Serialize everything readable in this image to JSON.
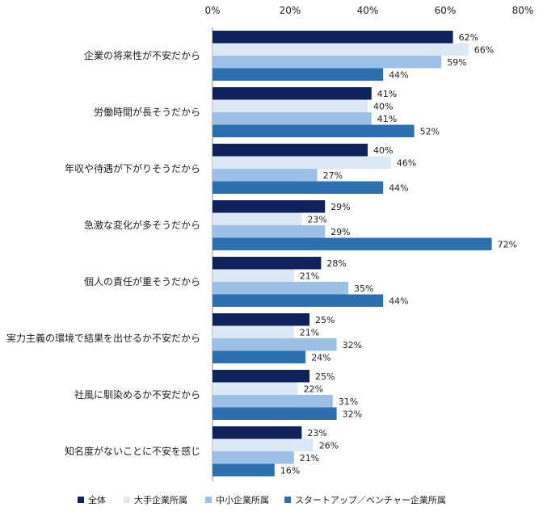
{
  "chart_data": {
    "type": "bar",
    "orientation": "horizontal",
    "xlim": [
      0,
      80
    ],
    "ticks": [
      0,
      20,
      40,
      60,
      80
    ],
    "tick_labels": [
      "0%",
      "20%",
      "40%",
      "60%",
      "80%"
    ],
    "value_suffix": "%",
    "legend_position": "bottom",
    "categories": [
      "企業の将来性が不安だから",
      "労働時間が長そうだから",
      "年収や待遇が下がりそうだから",
      "急激な変化が多そうだから",
      "個人の責任が重そうだから",
      "実力主義の環境で結果を出せるか不安だから",
      "社風に馴染めるか不安だから",
      "知名度がないことに不安を感じ"
    ],
    "series": [
      {
        "name": "全体",
        "color": "#0f2259",
        "values": [
          62,
          41,
          40,
          29,
          28,
          25,
          25,
          23
        ]
      },
      {
        "name": "大手企業所属",
        "color": "#dde8f5",
        "values": [
          66,
          40,
          46,
          23,
          21,
          21,
          22,
          26
        ]
      },
      {
        "name": "中小企業所属",
        "color": "#9dc0e6",
        "values": [
          59,
          41,
          27,
          29,
          35,
          32,
          31,
          21
        ]
      },
      {
        "name": "スタートアップ／ベンチャー企業所属",
        "color": "#2e6fb0",
        "values": [
          44,
          52,
          44,
          72,
          44,
          24,
          32,
          16
        ]
      }
    ]
  }
}
